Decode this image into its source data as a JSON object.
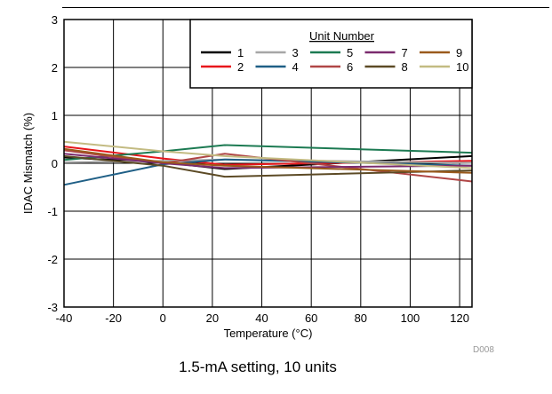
{
  "chart_data": {
    "type": "line",
    "title": "",
    "xlabel": "Temperature (°C)",
    "ylabel": "IDAC Mismatch (%)",
    "xlim": [
      -40,
      125
    ],
    "ylim": [
      -3,
      3
    ],
    "xticks": [
      -40,
      -20,
      0,
      20,
      40,
      60,
      80,
      100,
      120
    ],
    "yticks": [
      -3,
      -2,
      -1,
      0,
      1,
      2,
      3
    ],
    "grid": true,
    "legend": {
      "title": "Unit Number",
      "position": "top-right",
      "columns": 5
    },
    "x": [
      -40,
      0,
      25,
      125
    ],
    "series": [
      {
        "name": "1",
        "color": "#000000",
        "values": [
          0.12,
          0.02,
          -0.12,
          0.15
        ]
      },
      {
        "name": "2",
        "color": "#e8161b",
        "values": [
          0.35,
          0.1,
          -0.03,
          0.05
        ]
      },
      {
        "name": "3",
        "color": "#a6a6a6",
        "values": [
          0.02,
          0.05,
          0.08,
          0.01
        ]
      },
      {
        "name": "4",
        "color": "#1f5f86",
        "values": [
          -0.45,
          -0.02,
          0.08,
          -0.05
        ]
      },
      {
        "name": "5",
        "color": "#1c7a52",
        "values": [
          0.07,
          0.25,
          0.38,
          0.22
        ]
      },
      {
        "name": "6",
        "color": "#b04646",
        "values": [
          0.27,
          0.0,
          0.2,
          -0.38
        ]
      },
      {
        "name": "7",
        "color": "#7a2b6e",
        "values": [
          0.2,
          0.0,
          -0.1,
          -0.05
        ]
      },
      {
        "name": "8",
        "color": "#5c4a25",
        "values": [
          0.15,
          -0.05,
          -0.28,
          -0.15
        ]
      },
      {
        "name": "9",
        "color": "#9a5a1c",
        "values": [
          0.3,
          0.02,
          -0.05,
          -0.2
        ]
      },
      {
        "name": "10",
        "color": "#c3bb82",
        "values": [
          0.45,
          0.25,
          0.15,
          -0.1
        ]
      }
    ]
  },
  "caption": "1.5-mA setting, 10 units",
  "figure_id": "D008"
}
